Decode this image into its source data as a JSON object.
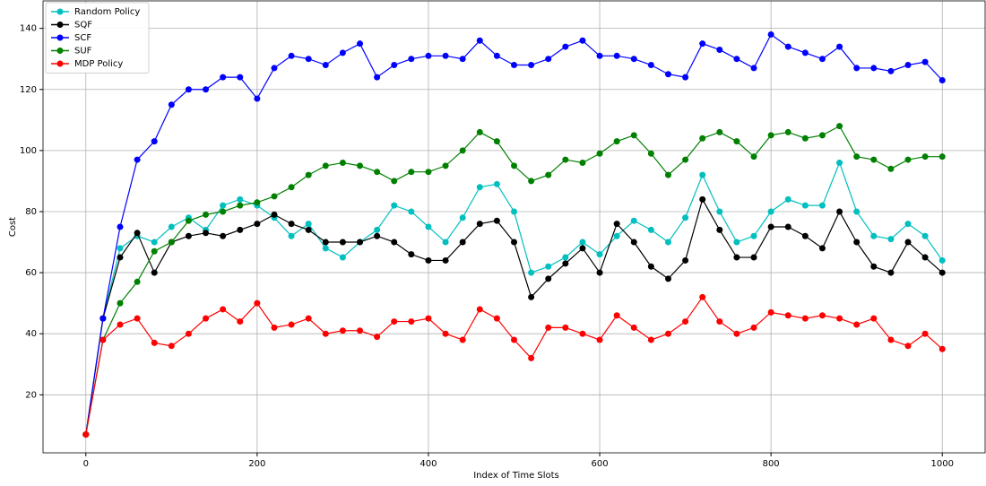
{
  "chart_data": {
    "type": "line",
    "xlabel": "Index of Time Slots",
    "ylabel": "Cost",
    "x": [
      0,
      20,
      40,
      60,
      80,
      100,
      120,
      140,
      160,
      180,
      200,
      220,
      240,
      260,
      280,
      300,
      320,
      340,
      360,
      380,
      400,
      420,
      440,
      460,
      480,
      500,
      520,
      540,
      560,
      580,
      600,
      620,
      640,
      660,
      680,
      700,
      720,
      740,
      760,
      780,
      800,
      820,
      840,
      860,
      880,
      900,
      920,
      940,
      960,
      980,
      1000
    ],
    "xlim": [
      -50,
      1050
    ],
    "xticks": [
      0,
      200,
      400,
      600,
      800,
      1000
    ],
    "ylim": [
      1,
      149
    ],
    "yticks": [
      20,
      40,
      60,
      80,
      100,
      120,
      140
    ],
    "grid": true,
    "legend": "upper left",
    "series": [
      {
        "name": "Random Policy",
        "color": "#00bfbf",
        "values": [
          7,
          45,
          68,
          72,
          70,
          75,
          78,
          74,
          82,
          84,
          82,
          78,
          72,
          76,
          68,
          65,
          70,
          74,
          82,
          80,
          75,
          70,
          78,
          88,
          89,
          80,
          60,
          62,
          65,
          70,
          66,
          72,
          77,
          74,
          70,
          78,
          92,
          80,
          70,
          72,
          80,
          84,
          82,
          82,
          96,
          80,
          72,
          71,
          76,
          72,
          64
        ]
      },
      {
        "name": "SQF",
        "color": "#000000",
        "values": [
          7,
          45,
          65,
          73,
          60,
          70,
          72,
          73,
          72,
          74,
          76,
          79,
          76,
          74,
          70,
          70,
          70,
          72,
          70,
          66,
          64,
          64,
          70,
          76,
          77,
          70,
          52,
          58,
          63,
          68,
          60,
          76,
          70,
          62,
          58,
          64,
          84,
          74,
          65,
          65,
          75,
          75,
          72,
          68,
          80,
          70,
          62,
          60,
          70,
          65,
          60
        ]
      },
      {
        "name": "SCF",
        "color": "#0000ff",
        "values": [
          7,
          45,
          75,
          97,
          103,
          115,
          120,
          120,
          124,
          124,
          117,
          127,
          131,
          130,
          128,
          132,
          135,
          124,
          128,
          130,
          131,
          131,
          130,
          136,
          131,
          128,
          128,
          130,
          134,
          136,
          131,
          131,
          130,
          128,
          125,
          124,
          135,
          133,
          130,
          127,
          138,
          134,
          132,
          130,
          134,
          127,
          127,
          126,
          128,
          129,
          123
        ]
      },
      {
        "name": "SUF",
        "color": "#008000",
        "values": [
          7,
          38,
          50,
          57,
          67,
          70,
          77,
          79,
          80,
          82,
          83,
          85,
          88,
          92,
          95,
          96,
          95,
          93,
          90,
          93,
          93,
          95,
          100,
          106,
          103,
          95,
          90,
          92,
          97,
          96,
          99,
          103,
          105,
          99,
          92,
          97,
          104,
          106,
          103,
          98,
          105,
          106,
          104,
          105,
          108,
          98,
          97,
          94,
          97,
          98,
          98
        ]
      },
      {
        "name": "MDP Policy",
        "color": "#ff0000",
        "values": [
          7,
          38,
          43,
          45,
          37,
          36,
          40,
          45,
          48,
          44,
          50,
          42,
          43,
          45,
          40,
          41,
          41,
          39,
          44,
          44,
          45,
          40,
          38,
          48,
          45,
          38,
          32,
          42,
          42,
          40,
          38,
          46,
          42,
          38,
          40,
          44,
          52,
          44,
          40,
          42,
          47,
          46,
          45,
          46,
          45,
          43,
          45,
          38,
          36,
          40,
          35
        ]
      }
    ]
  }
}
